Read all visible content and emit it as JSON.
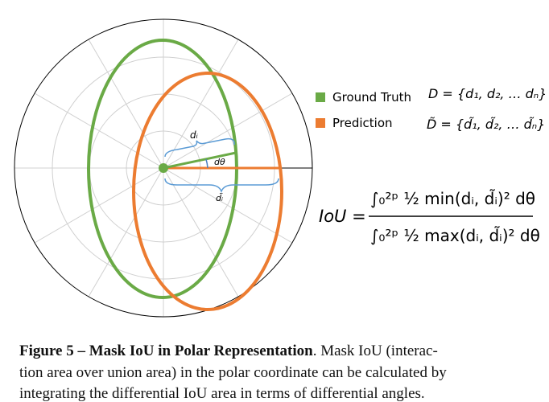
{
  "figure": {
    "legend": [
      {
        "label": "Ground Truth",
        "set": "D = {d₁, d₂, … dₙ}"
      },
      {
        "label": "Prediction",
        "set": "D̃ = {d̃₁, d̃₂, … d̃ₙ}"
      }
    ],
    "annotations": {
      "gt_radius": "dᵢ",
      "angle": "dθ",
      "pred_radius": "d̃ᵢ"
    },
    "formula": {
      "lhs": "IoU =",
      "numerator": "∫₀²ᵖ ½ min(dᵢ, d̃ᵢ)² dθ",
      "denominator": "∫₀²ᵖ ½ max(dᵢ, d̃ᵢ)² dθ"
    }
  },
  "caption": {
    "title": "Figure 5 – Mask IoU in Polar Representation",
    "lines": [
      ". Mask IoU (interac-",
      "tion area over union area) in the polar coordinate can be calculated by",
      "integrating the differential IoU area in terms of differential angles."
    ]
  }
}
